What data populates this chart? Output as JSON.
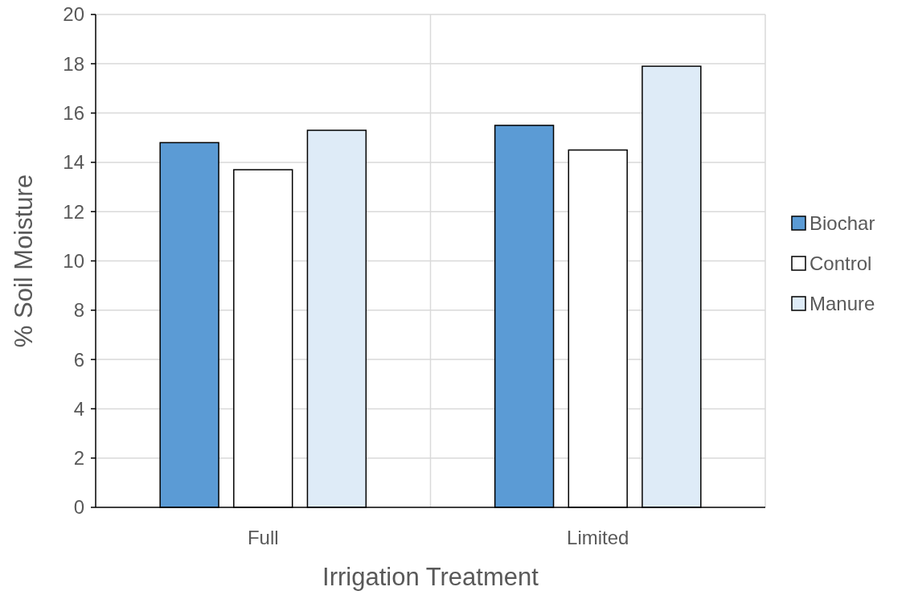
{
  "chart_data": {
    "type": "bar",
    "xlabel": "Irrigation Treatment",
    "ylabel": "% Soil Moisture",
    "categories": [
      "Full",
      "Limited"
    ],
    "series": [
      {
        "name": "Biochar",
        "color": "#5b9bd5",
        "values": [
          14.8,
          15.5
        ]
      },
      {
        "name": "Control",
        "color": "#ffffff",
        "values": [
          13.7,
          14.5
        ]
      },
      {
        "name": "Manure",
        "color": "#deebf7",
        "values": [
          15.3,
          17.9
        ]
      }
    ],
    "ylim": [
      0,
      20
    ],
    "yticks": [
      0,
      2,
      4,
      6,
      8,
      10,
      12,
      14,
      16,
      18,
      20
    ],
    "grid": true,
    "legend": "right"
  }
}
